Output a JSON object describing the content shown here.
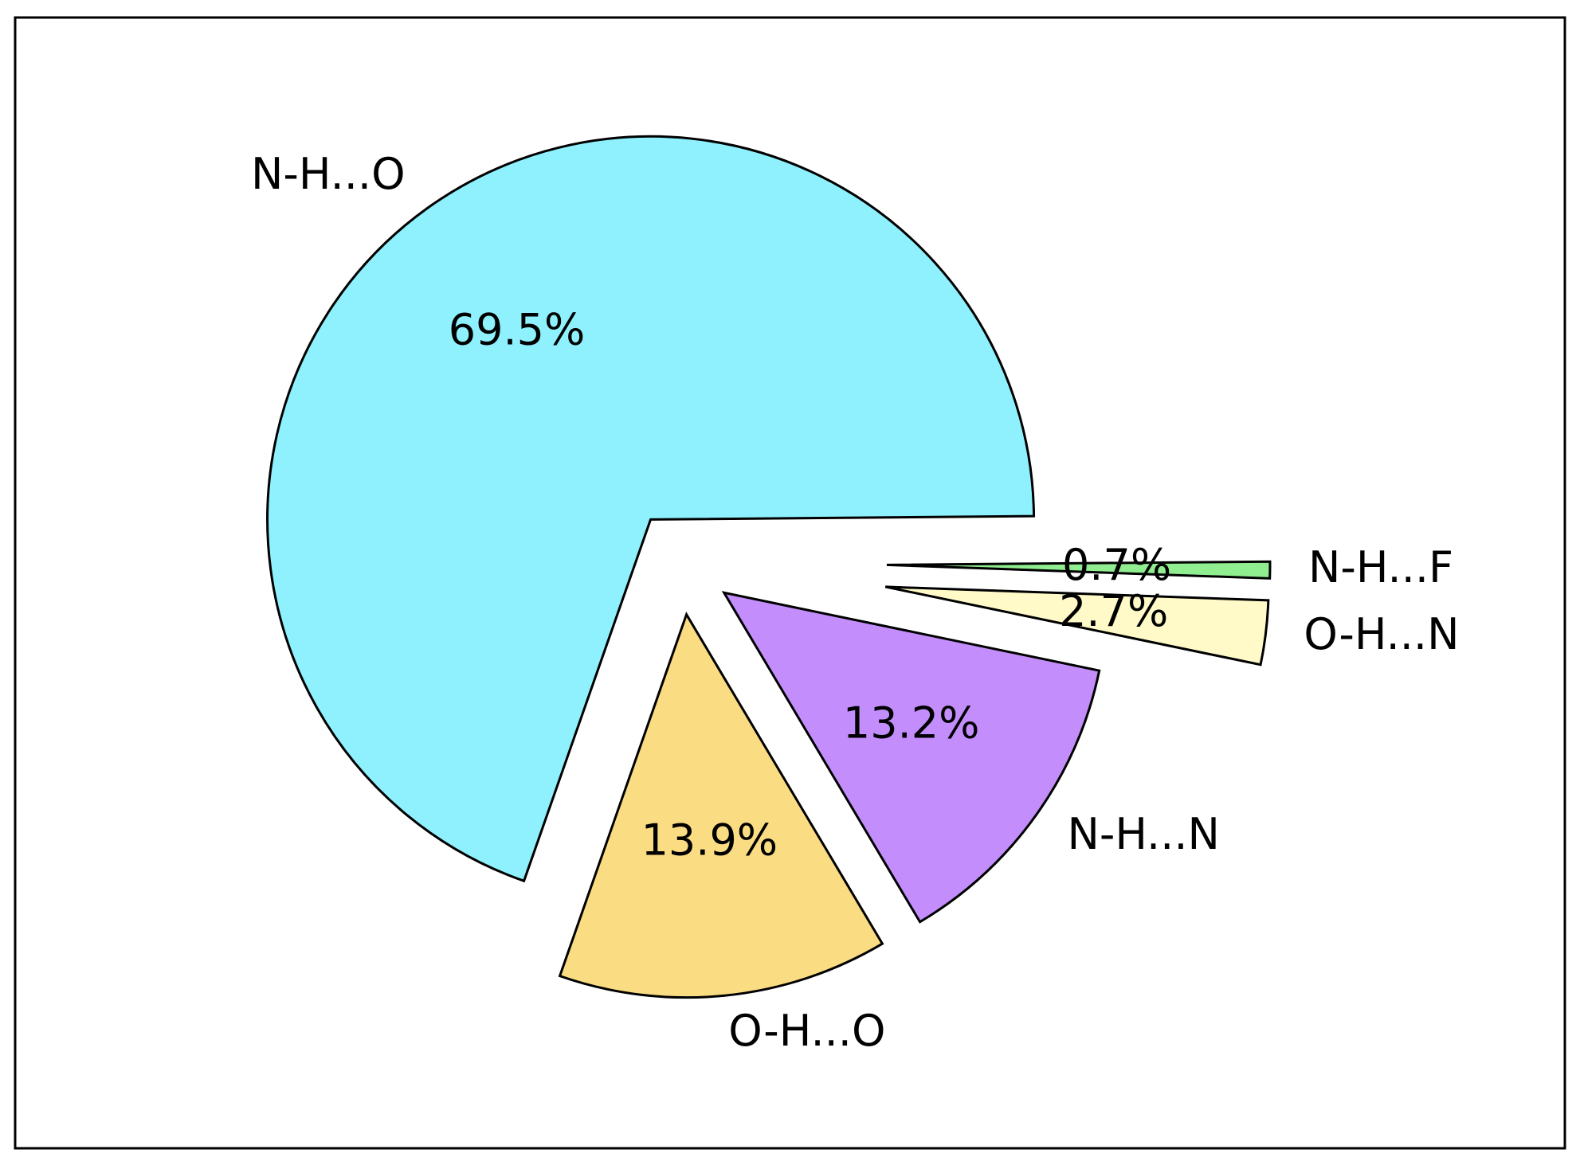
{
  "chart_data": {
    "type": "pie",
    "categories": [
      "N-H...O",
      "O-H...O",
      "N-H...N",
      "O-H...N",
      "N-H...F"
    ],
    "values": [
      69.5,
      13.9,
      13.2,
      2.7,
      0.7
    ],
    "value_labels": [
      "69.5%",
      "13.9%",
      "13.2%",
      "2.7%",
      "0.7%"
    ],
    "colors": [
      "#8ef1fd",
      "#fadc82",
      "#c38efc",
      "#fffac8",
      "#90ee90"
    ]
  }
}
